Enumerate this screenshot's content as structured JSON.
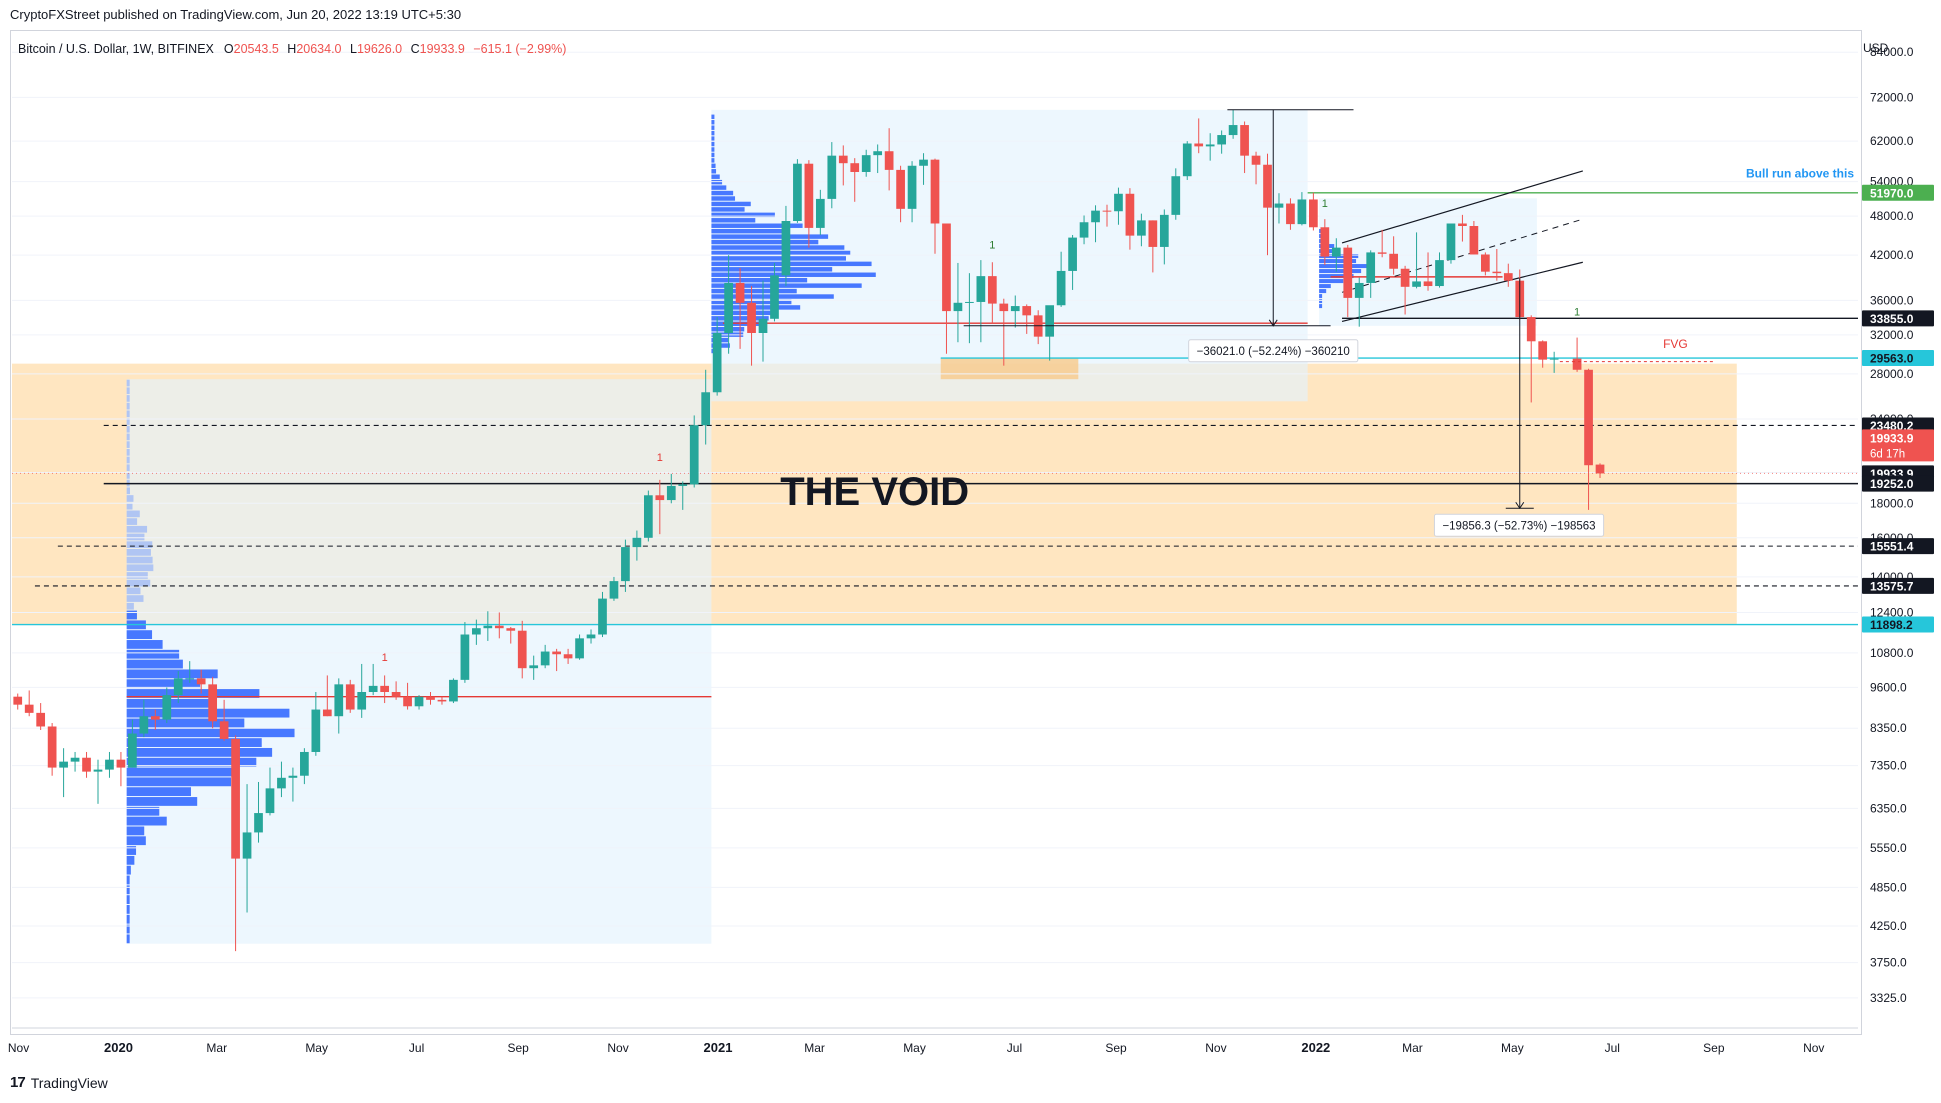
{
  "header": {
    "published": "CryptoFXStreet published on TradingView.com, Jun 20, 2022 13:19 UTC+5:30"
  },
  "legend": {
    "symbol": "Bitcoin / U.S. Dollar, 1W, BITFINEX",
    "open_label": "O",
    "open": "20543.5",
    "high_label": "H",
    "high": "20634.0",
    "low_label": "L",
    "low": "19626.0",
    "close_label": "C",
    "close": "19933.9",
    "change": "−615.1 (−2.99%)"
  },
  "footer": {
    "logo": "17",
    "brand": "TradingView"
  },
  "colors": {
    "bull": "#26a69a",
    "bear": "#ef5350",
    "vp_blue": "#2962ff",
    "vp_light": "#a5bdf5",
    "zone_orange": "#ffe0b2",
    "zone_blue": "#e3f2fd",
    "cyan": "#26c6da",
    "green_line": "#4caf50",
    "red_line": "#e53935"
  },
  "chart_data": {
    "type": "candlestick",
    "title": "Bitcoin / U.S. Dollar, 1W, BITFINEX",
    "y_scale": "log",
    "ylim": [
      3000,
      90000
    ],
    "xlim": [
      "2019-10-28",
      "2022-11-28"
    ],
    "currency": "USD",
    "y_ticks": [
      84000,
      72000,
      62000,
      54000,
      48000,
      42000,
      36000,
      32000,
      28000,
      24000,
      20000,
      18000,
      16000,
      14000,
      12400,
      10800,
      9600,
      8350,
      7350,
      6350,
      5550,
      4850,
      4250,
      3750,
      3325
    ],
    "x_ticks": [
      {
        "d": "2019-11-01",
        "label": "Nov"
      },
      {
        "d": "2020-01-01",
        "label": "2020"
      },
      {
        "d": "2020-03-01",
        "label": "Mar"
      },
      {
        "d": "2020-05-01",
        "label": "May"
      },
      {
        "d": "2020-07-01",
        "label": "Jul"
      },
      {
        "d": "2020-09-01",
        "label": "Sep"
      },
      {
        "d": "2020-11-01",
        "label": "Nov"
      },
      {
        "d": "2021-01-01",
        "label": "2021"
      },
      {
        "d": "2021-03-01",
        "label": "Mar"
      },
      {
        "d": "2021-05-01",
        "label": "May"
      },
      {
        "d": "2021-07-01",
        "label": "Jul"
      },
      {
        "d": "2021-09-01",
        "label": "Sep"
      },
      {
        "d": "2021-11-01",
        "label": "Nov"
      },
      {
        "d": "2022-01-01",
        "label": "2022"
      },
      {
        "d": "2022-03-01",
        "label": "Mar"
      },
      {
        "d": "2022-05-01",
        "label": "May"
      },
      {
        "d": "2022-07-01",
        "label": "Jul"
      },
      {
        "d": "2022-09-01",
        "label": "Sep"
      },
      {
        "d": "2022-11-01",
        "label": "Nov"
      }
    ],
    "candles": [
      [
        "2019-10-28",
        9300,
        9400,
        8900,
        9050
      ],
      [
        "2019-11-04",
        9050,
        9500,
        8700,
        8800
      ],
      [
        "2019-11-11",
        8800,
        9100,
        8300,
        8400
      ],
      [
        "2019-11-18",
        8400,
        8500,
        7100,
        7300
      ],
      [
        "2019-11-25",
        7300,
        7800,
        6600,
        7450
      ],
      [
        "2019-12-02",
        7450,
        7700,
        7200,
        7550
      ],
      [
        "2019-12-09",
        7550,
        7700,
        7050,
        7200
      ],
      [
        "2019-12-16",
        7200,
        7500,
        6450,
        7250
      ],
      [
        "2019-12-23",
        7250,
        7700,
        7050,
        7500
      ],
      [
        "2019-12-30",
        7500,
        7700,
        6850,
        7300
      ],
      [
        "2020-01-06",
        7300,
        8600,
        7300,
        8200
      ],
      [
        "2020-01-13",
        8200,
        9200,
        8100,
        8700
      ],
      [
        "2020-01-20",
        8700,
        8900,
        8300,
        8600
      ],
      [
        "2020-01-27",
        8600,
        9600,
        8500,
        9350
      ],
      [
        "2020-02-03",
        9350,
        10150,
        9100,
        9900
      ],
      [
        "2020-02-10",
        9900,
        10500,
        9750,
        9900
      ],
      [
        "2020-02-17",
        9900,
        10200,
        9400,
        9700
      ],
      [
        "2020-02-24",
        9700,
        9950,
        8350,
        8550
      ],
      [
        "2020-03-02",
        8550,
        9200,
        8000,
        8050
      ],
      [
        "2020-03-09",
        8050,
        8150,
        3900,
        5350
      ],
      [
        "2020-03-16",
        5350,
        6900,
        4450,
        5850
      ],
      [
        "2020-03-23",
        5850,
        6950,
        5650,
        6250
      ],
      [
        "2020-03-30",
        6250,
        7300,
        6200,
        6800
      ],
      [
        "2020-04-06",
        6800,
        7450,
        6600,
        7050
      ],
      [
        "2020-04-13",
        7050,
        7300,
        6500,
        7100
      ],
      [
        "2020-04-20",
        7100,
        7800,
        6900,
        7700
      ],
      [
        "2020-04-27",
        7700,
        9450,
        7600,
        8900
      ],
      [
        "2020-05-04",
        8900,
        10000,
        8700,
        8700
      ],
      [
        "2020-05-11",
        8700,
        9900,
        8200,
        9700
      ],
      [
        "2020-05-18",
        9700,
        9850,
        8800,
        8900
      ],
      [
        "2020-05-25",
        8900,
        10400,
        8650,
        9450
      ],
      [
        "2020-06-01",
        9450,
        10400,
        9350,
        9650
      ],
      [
        "2020-06-08",
        9650,
        10000,
        9100,
        9450
      ],
      [
        "2020-06-15",
        9450,
        9800,
        9200,
        9300
      ],
      [
        "2020-06-22",
        9300,
        9750,
        8900,
        9000
      ],
      [
        "2020-06-29",
        9000,
        9350,
        8900,
        9300
      ],
      [
        "2020-07-06",
        9300,
        9450,
        9050,
        9200
      ],
      [
        "2020-07-13",
        9200,
        9300,
        9050,
        9150
      ],
      [
        "2020-07-20",
        9150,
        9900,
        9100,
        9850
      ],
      [
        "2020-07-27",
        9850,
        12000,
        9750,
        11500
      ],
      [
        "2020-08-03",
        11500,
        12100,
        11100,
        11750
      ],
      [
        "2020-08-10",
        11750,
        12450,
        11250,
        11850
      ],
      [
        "2020-08-17",
        11850,
        12400,
        11350,
        11750
      ],
      [
        "2020-08-24",
        11750,
        11800,
        11150,
        11650
      ],
      [
        "2020-08-31",
        11650,
        12050,
        9900,
        10250
      ],
      [
        "2020-09-07",
        10250,
        10700,
        9850,
        10350
      ],
      [
        "2020-09-14",
        10350,
        11100,
        10250,
        10850
      ],
      [
        "2020-09-21",
        10850,
        10950,
        10150,
        10750
      ],
      [
        "2020-09-28",
        10750,
        10950,
        10400,
        10600
      ],
      [
        "2020-10-05",
        10600,
        11500,
        10550,
        11350
      ],
      [
        "2020-10-12",
        11350,
        11700,
        11150,
        11500
      ],
      [
        "2020-10-19",
        11500,
        13300,
        11400,
        13000
      ],
      [
        "2020-10-26",
        13000,
        14000,
        12900,
        13800
      ],
      [
        "2020-11-02",
        13800,
        15900,
        13300,
        15500
      ],
      [
        "2020-11-09",
        15500,
        16400,
        14800,
        16000
      ],
      [
        "2020-11-16",
        16000,
        18800,
        15800,
        18500
      ],
      [
        "2020-11-23",
        18500,
        19500,
        16200,
        18200
      ],
      [
        "2020-11-30",
        18200,
        19900,
        18000,
        19100
      ],
      [
        "2020-12-07",
        19100,
        19400,
        17600,
        19200
      ],
      [
        "2020-12-14",
        19200,
        24300,
        19000,
        23500
      ],
      [
        "2020-12-21",
        23500,
        28400,
        22000,
        26300
      ],
      [
        "2020-12-28",
        26300,
        34000,
        26000,
        32200
      ],
      [
        "2021-01-04",
        32200,
        42000,
        30000,
        38200
      ],
      [
        "2021-01-11",
        38200,
        40200,
        30500,
        35700
      ],
      [
        "2021-01-18",
        35700,
        37800,
        28800,
        32200
      ],
      [
        "2021-01-25",
        32200,
        38500,
        29200,
        33800
      ],
      [
        "2021-02-01",
        33800,
        40900,
        33500,
        39200
      ],
      [
        "2021-02-08",
        39200,
        49700,
        37800,
        47200
      ],
      [
        "2021-02-15",
        47200,
        58300,
        46900,
        57400
      ],
      [
        "2021-02-22",
        57400,
        58100,
        43100,
        46100
      ],
      [
        "2021-03-01",
        46100,
        52500,
        45000,
        50900
      ],
      [
        "2021-03-08",
        50900,
        61800,
        49300,
        59000
      ],
      [
        "2021-03-15",
        59000,
        61100,
        53300,
        57500
      ],
      [
        "2021-03-22",
        57500,
        58500,
        50400,
        55800
      ],
      [
        "2021-03-29",
        55800,
        60200,
        54900,
        59100
      ],
      [
        "2021-04-05",
        59100,
        61300,
        55600,
        59900
      ],
      [
        "2021-04-12",
        59900,
        64800,
        52400,
        56200
      ],
      [
        "2021-04-19",
        56200,
        57000,
        47000,
        49200
      ],
      [
        "2021-04-26",
        49200,
        57900,
        47000,
        57000
      ],
      [
        "2021-05-03",
        57000,
        59500,
        53400,
        58200
      ],
      [
        "2021-05-10",
        58200,
        58400,
        42200,
        46800
      ],
      [
        "2021-05-17",
        46800,
        46800,
        30000,
        34700
      ],
      [
        "2021-05-24",
        34700,
        40900,
        31200,
        35700
      ],
      [
        "2021-05-31",
        35700,
        39500,
        31100,
        35800
      ],
      [
        "2021-06-07",
        35800,
        41300,
        31200,
        39100
      ],
      [
        "2021-06-14",
        39100,
        41000,
        33300,
        35600
      ],
      [
        "2021-06-21",
        35600,
        36200,
        28800,
        34700
      ],
      [
        "2021-06-28",
        34700,
        36600,
        32800,
        35300
      ],
      [
        "2021-07-05",
        35300,
        35500,
        32100,
        34200
      ],
      [
        "2021-07-12",
        34200,
        34800,
        31000,
        31800
      ],
      [
        "2021-07-19",
        31800,
        35300,
        29300,
        35400
      ],
      [
        "2021-07-26",
        35400,
        42500,
        35200,
        39800
      ],
      [
        "2021-08-02",
        39800,
        45000,
        37300,
        44600
      ],
      [
        "2021-08-09",
        44600,
        48100,
        43600,
        47000
      ],
      [
        "2021-08-16",
        47000,
        49800,
        43900,
        48900
      ],
      [
        "2021-08-23",
        48900,
        49900,
        46300,
        48800
      ],
      [
        "2021-08-30",
        48800,
        52900,
        46600,
        51800
      ],
      [
        "2021-09-06",
        51800,
        52800,
        42800,
        44900
      ],
      [
        "2021-09-13",
        44900,
        48400,
        43300,
        47300
      ],
      [
        "2021-09-20",
        47300,
        47300,
        39600,
        43200
      ],
      [
        "2021-09-27",
        43200,
        49100,
        40700,
        48200
      ],
      [
        "2021-10-04",
        48200,
        56500,
        47400,
        55000
      ],
      [
        "2021-10-11",
        55000,
        62000,
        54300,
        61500
      ],
      [
        "2021-10-18",
        61500,
        67000,
        59500,
        60900
      ],
      [
        "2021-10-25",
        60900,
        63700,
        58000,
        61300
      ],
      [
        "2021-11-01",
        61300,
        64300,
        59400,
        63300
      ],
      [
        "2021-11-08",
        63300,
        69000,
        62500,
        65500
      ],
      [
        "2021-11-15",
        65500,
        66300,
        55600,
        59000
      ],
      [
        "2021-11-22",
        59000,
        59800,
        53500,
        57200
      ],
      [
        "2021-11-29",
        57200,
        59400,
        42000,
        49400
      ],
      [
        "2021-12-06",
        49400,
        51900,
        46800,
        50100
      ],
      [
        "2021-12-13",
        50100,
        51000,
        45800,
        46700
      ],
      [
        "2021-12-20",
        46700,
        52100,
        46500,
        50800
      ],
      [
        "2021-12-27",
        50800,
        52000,
        45700,
        46200
      ],
      [
        "2022-01-03",
        46200,
        47500,
        40600,
        41800
      ],
      [
        "2022-01-10",
        41800,
        44500,
        39700,
        43100
      ],
      [
        "2022-01-17",
        43100,
        43500,
        34000,
        36300
      ],
      [
        "2022-01-24",
        36300,
        38900,
        32900,
        38200
      ],
      [
        "2022-01-31",
        38200,
        42700,
        36300,
        42400
      ],
      [
        "2022-02-07",
        42400,
        45800,
        41700,
        42200
      ],
      [
        "2022-02-14",
        42200,
        44800,
        39300,
        40100
      ],
      [
        "2022-02-21",
        40100,
        40500,
        34300,
        37700
      ],
      [
        "2022-02-28",
        37700,
        45400,
        37500,
        38400
      ],
      [
        "2022-03-07",
        38400,
        42400,
        37200,
        37800
      ],
      [
        "2022-03-14",
        37800,
        42400,
        37600,
        41300
      ],
      [
        "2022-03-21",
        41300,
        46500,
        40800,
        46800
      ],
      [
        "2022-03-28",
        46800,
        48200,
        44000,
        46400
      ],
      [
        "2022-04-04",
        46400,
        47200,
        42100,
        42100
      ],
      [
        "2022-04-11",
        42100,
        42400,
        39200,
        39700
      ],
      [
        "2022-04-18",
        39700,
        42900,
        38500,
        39500
      ],
      [
        "2022-04-25",
        39500,
        40800,
        37700,
        38500
      ],
      [
        "2022-05-02",
        38500,
        40000,
        33700,
        34000
      ],
      [
        "2022-05-09",
        34000,
        34200,
        25400,
        31300
      ],
      [
        "2022-05-16",
        31300,
        31400,
        28600,
        29400
      ],
      [
        "2022-05-23",
        29400,
        30200,
        28100,
        29500
      ],
      [
        "2022-06-06",
        29500,
        31700,
        28200,
        28400
      ],
      [
        "2022-06-13",
        28400,
        28500,
        17600,
        20500
      ],
      [
        "2022-06-20",
        20543.5,
        20634.0,
        19626.0,
        19933.9
      ]
    ],
    "price_labels": [
      {
        "value": "51970.0",
        "price": 51970,
        "bg": "#4caf50",
        "fg": "#ffffff"
      },
      {
        "value": "33855.0",
        "price": 33855,
        "bg": "#131722",
        "fg": "#ffffff"
      },
      {
        "value": "29563.0",
        "price": 29563,
        "bg": "#26c6da",
        "fg": "#131722"
      },
      {
        "value": "23480.2",
        "price": 23480.2,
        "bg": "#131722",
        "fg": "#ffffff"
      },
      {
        "value": "19933.9",
        "price": 19933.9,
        "bg": "#131722",
        "fg": "#ffffff"
      },
      {
        "value": "19252.0",
        "price": 19252,
        "bg": "#131722",
        "fg": "#ffffff"
      },
      {
        "value": "15551.4",
        "price": 15551.4,
        "bg": "#131722",
        "fg": "#ffffff"
      },
      {
        "value": "13575.7",
        "price": 13575.7,
        "bg": "#131722",
        "fg": "#ffffff"
      },
      {
        "value": "11898.2",
        "price": 11898.2,
        "bg": "#26c6da",
        "fg": "#131722"
      }
    ],
    "last_price_label": {
      "value": "19933.9",
      "countdown": "6d 17h",
      "price": 21200
    },
    "horizontal_levels": [
      {
        "price": 51970,
        "color": "#4caf50",
        "style": "solid",
        "from": "2021-12-27",
        "to": "2022-11-28"
      },
      {
        "price": 33855,
        "color": "#131722",
        "style": "solid",
        "from": "2022-01-17",
        "to": "2022-11-28"
      },
      {
        "price": 29563,
        "color": "#26c6da",
        "style": "solid",
        "from": "2021-05-17",
        "to": "2022-11-28"
      },
      {
        "price": 23480.2,
        "color": "#131722",
        "style": "dashed",
        "from": "2019-12-23",
        "to": "2022-11-28"
      },
      {
        "price": 19252,
        "color": "#131722",
        "style": "solid",
        "from": "2019-12-23",
        "to": "2022-11-28"
      },
      {
        "price": 15551.4,
        "color": "#131722",
        "style": "dashed",
        "from": "2019-11-25",
        "to": "2022-11-28"
      },
      {
        "price": 13575.7,
        "color": "#131722",
        "style": "dashed",
        "from": "2019-11-11",
        "to": "2022-11-28"
      },
      {
        "price": 11898.2,
        "color": "#26c6da",
        "style": "solid",
        "from": "2019-10-28",
        "to": "2022-11-28"
      }
    ],
    "annotations": {
      "void_label": "THE VOID",
      "bull_run": "Bull run above this",
      "fvg": "FVG",
      "measure1": "−36021.0 (−52.24%) −360210",
      "measure2": "−19856.3 (−52.73%) −198563",
      "markers": [
        {
          "d": "2020-06-08",
          "p": 10500,
          "text": "1",
          "color": "#e53935"
        },
        {
          "d": "2020-11-23",
          "p": 20800,
          "text": "1",
          "color": "#e53935"
        },
        {
          "d": "2021-06-14",
          "p": 43000,
          "text": "1",
          "color": "#2e7d32"
        },
        {
          "d": "2022-01-03",
          "p": 49500,
          "text": "1",
          "color": "#2e7d32"
        },
        {
          "d": "2022-06-06",
          "p": 34200,
          "text": "1",
          "color": "#2e7d32"
        }
      ]
    }
  }
}
